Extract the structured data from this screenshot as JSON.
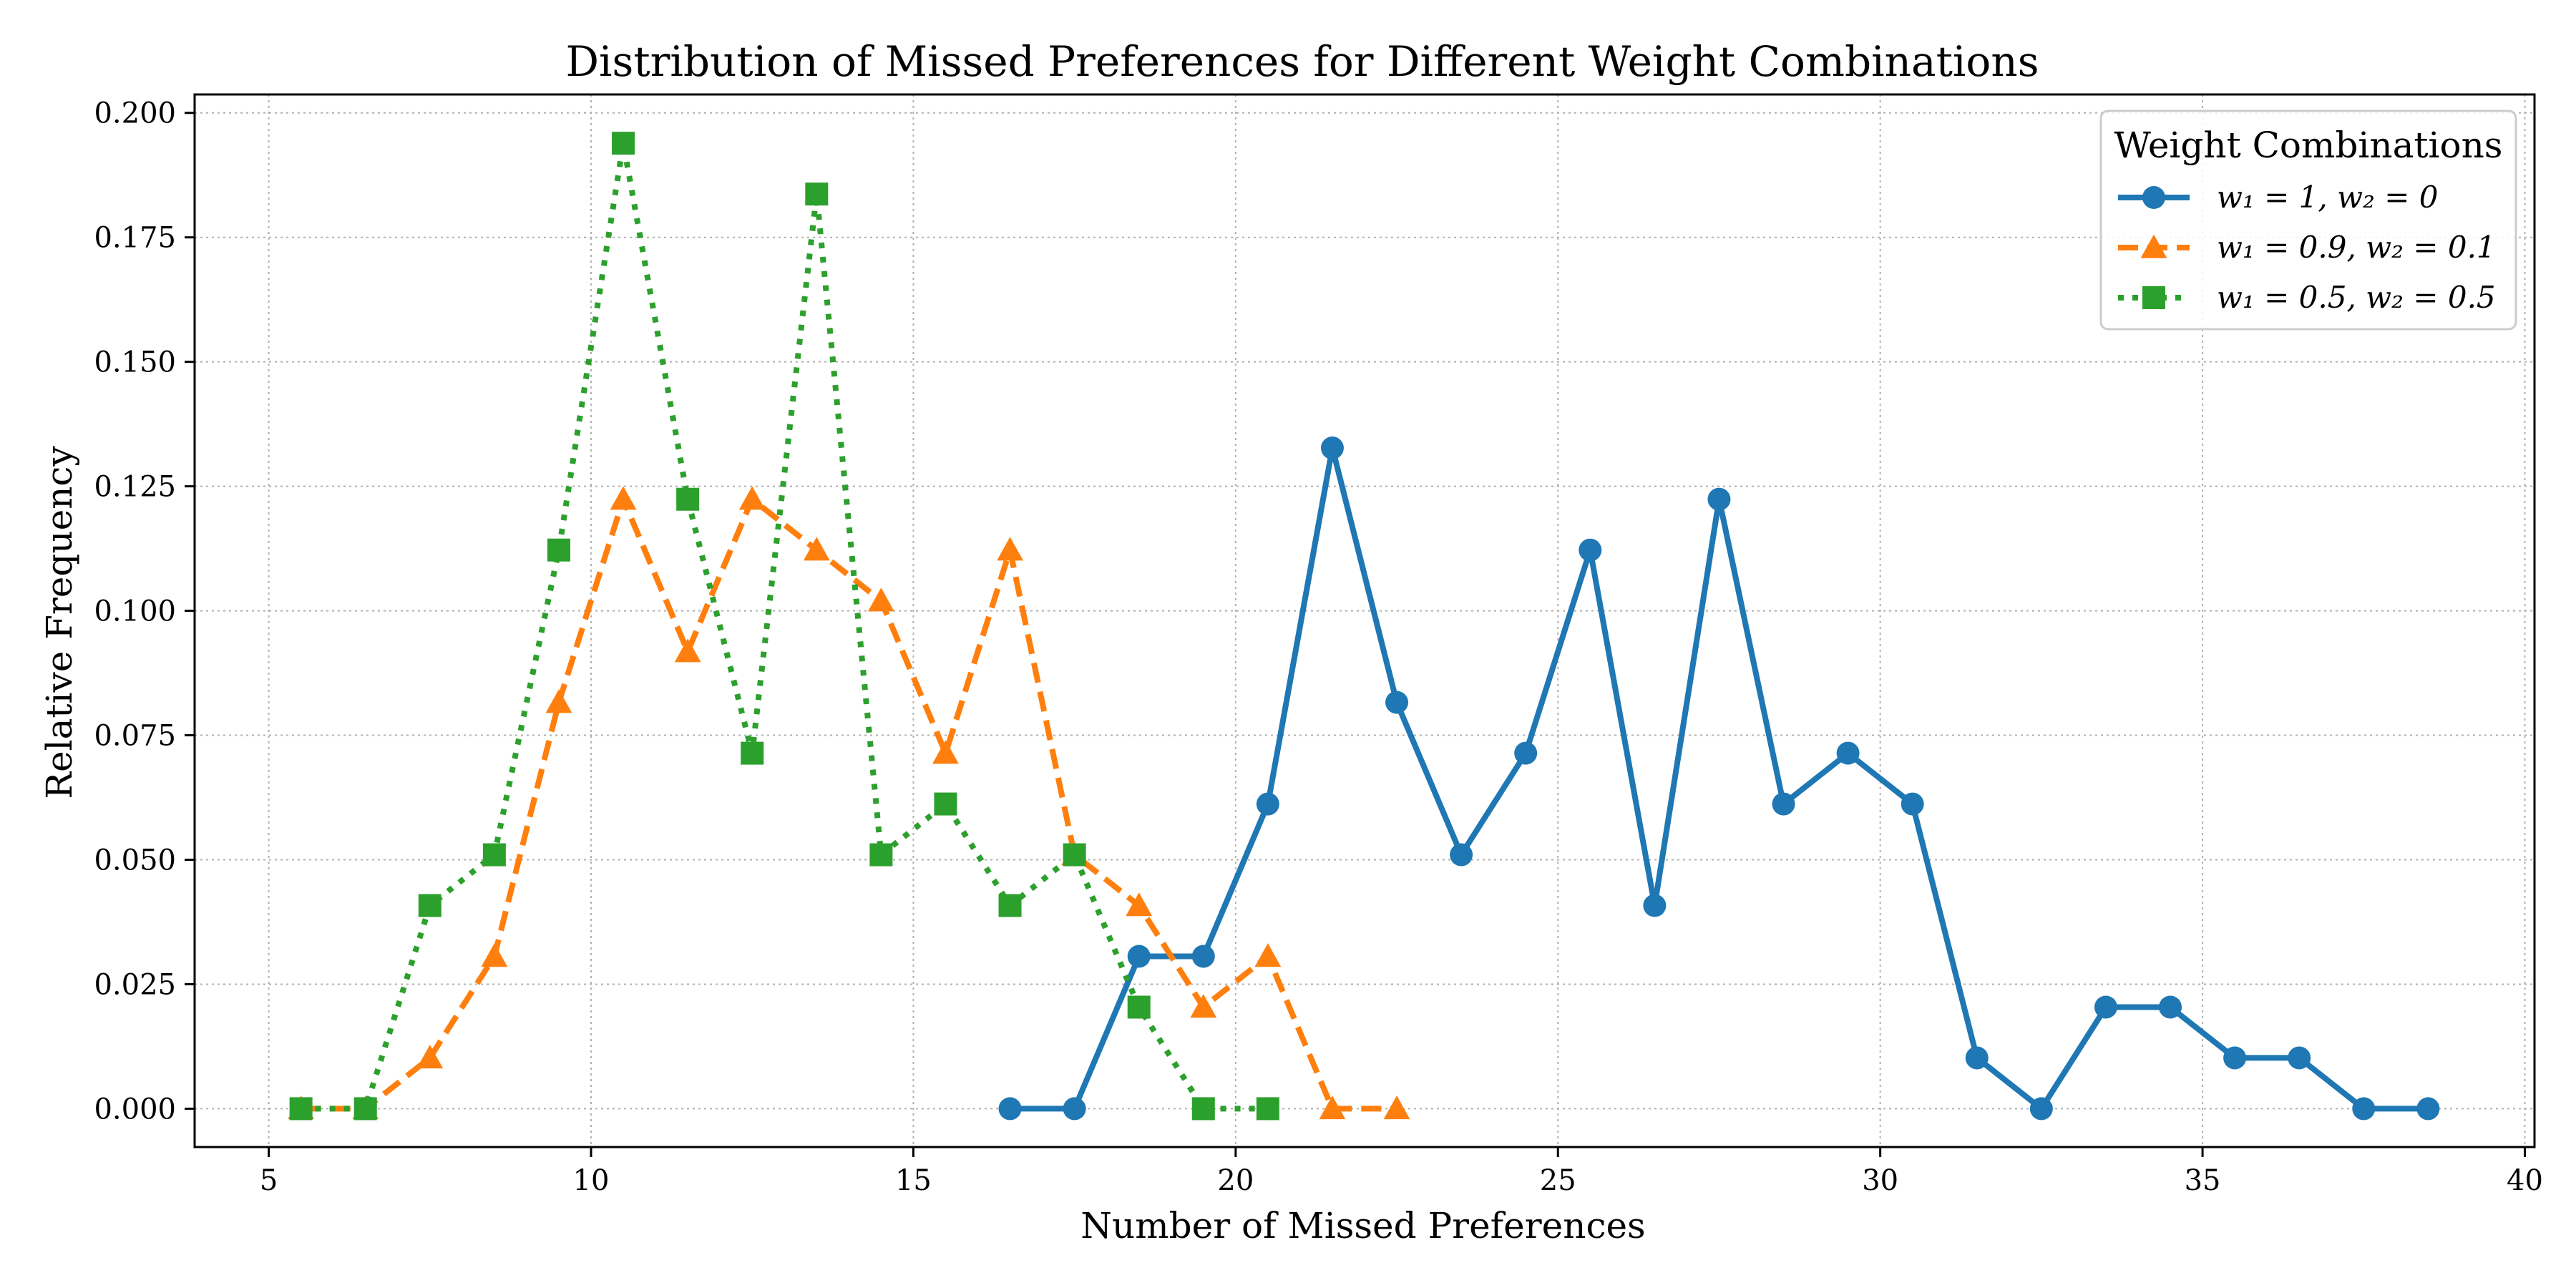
{
  "chart_data": {
    "type": "line",
    "title": "Distribution of Missed Preferences for Different Weight Combinations",
    "xlabel": "Number of Missed Preferences",
    "ylabel": "Relative Frequency",
    "xlim": [
      3.85,
      40.15
    ],
    "ylim": [
      -0.0077,
      0.2037
    ],
    "xticks": [
      5,
      10,
      15,
      20,
      25,
      30,
      35,
      40
    ],
    "xtick_labels": [
      "5",
      "10",
      "15",
      "20",
      "25",
      "30",
      "35",
      "40"
    ],
    "yticks": [
      0.0,
      0.025,
      0.05,
      0.075,
      0.1,
      0.125,
      0.15,
      0.175,
      0.2
    ],
    "ytick_labels": [
      "0.000",
      "0.025",
      "0.050",
      "0.075",
      "0.100",
      "0.125",
      "0.150",
      "0.175",
      "0.200"
    ],
    "grid": true,
    "legend": {
      "title": "Weight Combinations",
      "placement": "top-right"
    },
    "series": [
      {
        "name": "w1 = 1, w2 = 0",
        "label": "w₁ = 1, w₂ = 0",
        "color": "#1f77b4",
        "linestyle": "solid",
        "marker": "circle",
        "x": [
          16.5,
          17.5,
          18.5,
          19.5,
          20.5,
          21.5,
          22.5,
          23.5,
          24.5,
          25.5,
          26.5,
          27.5,
          28.5,
          29.5,
          30.5,
          31.5,
          32.5,
          33.5,
          34.5,
          35.5,
          36.5,
          37.5,
          38.5
        ],
        "y": [
          0.0,
          0.0,
          0.0306,
          0.0306,
          0.0612,
          0.1327,
          0.0816,
          0.051,
          0.0714,
          0.1122,
          0.0408,
          0.1224,
          0.0612,
          0.0714,
          0.0612,
          0.0102,
          0.0,
          0.0204,
          0.0204,
          0.0102,
          0.0102,
          0.0,
          0.0
        ]
      },
      {
        "name": "w1 = 0.9, w2 = 0.1",
        "label": "w₁ = 0.9, w₂ = 0.1",
        "color": "#ff7f0e",
        "linestyle": "dashed",
        "marker": "triangle",
        "x": [
          5.5,
          6.5,
          7.5,
          8.5,
          9.5,
          10.5,
          11.5,
          12.5,
          13.5,
          14.5,
          15.5,
          16.5,
          17.5,
          18.5,
          19.5,
          20.5,
          21.5,
          22.5
        ],
        "y": [
          0.0,
          0.0,
          0.0102,
          0.0306,
          0.0816,
          0.1224,
          0.0918,
          0.1224,
          0.1122,
          0.102,
          0.0714,
          0.1122,
          0.051,
          0.0408,
          0.0204,
          0.0306,
          0.0,
          0.0
        ]
      },
      {
        "name": "w1 = 0.5, w2 = 0.5",
        "label": "w₁ = 0.5, w₂ = 0.5",
        "color": "#2ca02c",
        "linestyle": "dotted",
        "marker": "square",
        "x": [
          5.5,
          6.5,
          7.5,
          8.5,
          9.5,
          10.5,
          11.5,
          12.5,
          13.5,
          14.5,
          15.5,
          16.5,
          17.5,
          18.5,
          19.5,
          20.5
        ],
        "y": [
          0.0,
          0.0,
          0.0408,
          0.051,
          0.1122,
          0.1939,
          0.1224,
          0.0714,
          0.1837,
          0.051,
          0.0612,
          0.0408,
          0.051,
          0.0204,
          0.0,
          0.0
        ]
      }
    ]
  }
}
